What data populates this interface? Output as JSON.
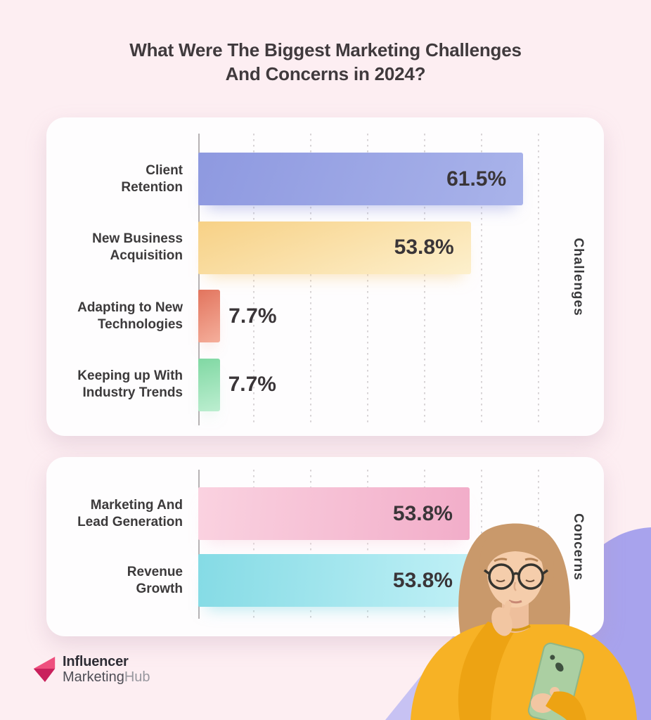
{
  "title": {
    "line1": "What Were The Biggest Marketing Challenges",
    "line2": "And Concerns in 2024?"
  },
  "chart_data": [
    {
      "type": "bar",
      "orientation": "horizontal",
      "panel_label": "Challenges",
      "x_axis": {
        "min": 0,
        "max": 100,
        "gridlines": 6,
        "tick_labels_visible": false,
        "grid_style": "dotted-vertical"
      },
      "categories": [
        "Client Retention",
        "New Business Acquisition",
        "Adapting to New Technologies",
        "Keeping up With Industry Trends"
      ],
      "values": [
        61.5,
        53.8,
        7.7,
        7.7
      ],
      "rows": [
        {
          "label_lines": [
            "Client",
            "Retention"
          ],
          "value": 61.5,
          "value_label": "61.5%",
          "label_inside": true,
          "display_width_pct": 80.1,
          "gradient": {
            "angle": 110,
            "from": "#8e99e0",
            "to": "#a9b3ea"
          }
        },
        {
          "label_lines": [
            "New Business",
            "Acquisition"
          ],
          "value": 53.8,
          "value_label": "53.8%",
          "label_inside": true,
          "display_width_pct": 67.2,
          "gradient": {
            "angle": 160,
            "from": "#f7d186",
            "to": "#fdf0cd"
          }
        },
        {
          "label_lines": [
            "Adapting to New",
            "Technologies"
          ],
          "value": 7.7,
          "value_label": "7.7%",
          "label_inside": false,
          "display_width_pct": 5.4,
          "gradient": {
            "angle": 150,
            "from": "#e2745d",
            "to": "#f5af9c"
          }
        },
        {
          "label_lines": [
            "Keeping up With",
            "Industry Trends"
          ],
          "value": 7.7,
          "value_label": "7.7%",
          "label_inside": false,
          "display_width_pct": 5.3,
          "gradient": {
            "angle": 165,
            "from": "#80d8a3",
            "to": "#bceed0"
          }
        }
      ]
    },
    {
      "type": "bar",
      "orientation": "horizontal",
      "panel_label": "Concerns",
      "x_axis": {
        "min": 0,
        "max": 100,
        "gridlines": 6,
        "tick_labels_visible": false,
        "grid_style": "dotted-vertical"
      },
      "categories": [
        "Marketing And Lead Generation",
        "Revenue Growth"
      ],
      "values": [
        53.8,
        53.8
      ],
      "rows": [
        {
          "label_lines": [
            "Marketing And",
            "Lead Generation"
          ],
          "value": 53.8,
          "value_label": "53.8%",
          "label_inside": true,
          "display_width_pct": 66.9,
          "gradient": {
            "angle": 95,
            "from": "#fad2e0",
            "to": "#f2adc9"
          }
        },
        {
          "label_lines": [
            "Revenue",
            "Growth"
          ],
          "value": 53.8,
          "value_label": "53.8%",
          "label_inside": true,
          "display_width_pct": 66.9,
          "gradient": {
            "angle": 95,
            "from": "#85dbe5",
            "to": "#c0f0f6"
          }
        }
      ]
    }
  ],
  "logo": {
    "brand_top": "Influencer",
    "brand_bottom_bold": "Marketing",
    "brand_bottom_light": "Hub"
  },
  "colors": {
    "page_bg": "#fdeef2",
    "card_bg": "#fefdfe",
    "title_text": "#403a3d",
    "category_text": "#3c3a3b",
    "value_text": "#3a3538",
    "axis": "#b6b2b4",
    "gridline": "#d8d4d6",
    "logo_pink_light": "#ee4f7e",
    "logo_pink_dark": "#c9205c"
  },
  "decor": {
    "blob_main": "#a8a3ed",
    "blob_light": "#c7c2f3",
    "sweater": "#f7b225",
    "sweater_shade": "#eda313",
    "hair": "#c9996b",
    "skin": "#f5cdab",
    "neck_shade": "#eebf9c",
    "hand": "#f2c6a2",
    "phone": "#abcfa2",
    "phone_detail": "#3f5140"
  }
}
